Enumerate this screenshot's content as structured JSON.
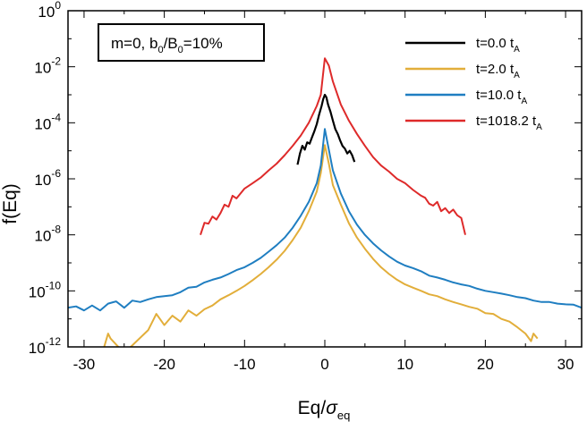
{
  "chart_data": {
    "type": "line",
    "annotation": "m=0, b0/B0=10%",
    "annotation_parts": {
      "m": "m=0, b",
      "sub1": "0",
      "mid": "/B",
      "sub2": "0",
      "rest": "=10%"
    },
    "xlabel": "Eq/σeq",
    "xlabel_parts": {
      "main": "Eq/",
      "sigma": "σ",
      "sub": "eq"
    },
    "ylabel": "f(Eq)",
    "xlim": [
      -32,
      32
    ],
    "ylim": [
      1e-12,
      1
    ],
    "yscale": "log",
    "xticks": [
      -30,
      -20,
      -10,
      0,
      10,
      20,
      30
    ],
    "xtick_labels": [
      "-30",
      "-20",
      "-10",
      "0",
      "10",
      "20",
      "30"
    ],
    "yticks": [
      1,
      0.01,
      0.0001,
      1e-06,
      1e-08,
      1e-10,
      1e-12
    ],
    "ytick_labels": [
      {
        "base": "10",
        "exp": "0"
      },
      {
        "base": "10",
        "exp": "-2"
      },
      {
        "base": "10",
        "exp": "-4"
      },
      {
        "base": "10",
        "exp": "-6"
      },
      {
        "base": "10",
        "exp": "-8"
      },
      {
        "base": "10",
        "exp": "-10"
      },
      {
        "base": "10",
        "exp": "-12"
      }
    ],
    "legend_position": "top-right",
    "series": [
      {
        "name": "t=0.0 tA",
        "label_main": "t=0.0 t",
        "label_sub": "A",
        "color": "#000000",
        "points": [
          [
            -3.4,
            3.2e-06
          ],
          [
            -3.1,
            8e-06
          ],
          [
            -2.8,
            1.5e-05
          ],
          [
            -2.5,
            1.1e-05
          ],
          [
            -2.2,
            2e-05
          ],
          [
            -1.9,
            1.8e-05
          ],
          [
            -1.6,
            3e-05
          ],
          [
            -1.3,
            5e-05
          ],
          [
            -1,
            9e-05
          ],
          [
            -0.7,
            0.0002
          ],
          [
            -0.4,
            0.0004
          ],
          [
            -0.2,
            0.0007
          ],
          [
            0,
            0.001
          ],
          [
            0.2,
            0.0008
          ],
          [
            0.4,
            0.00045
          ],
          [
            0.7,
            0.00025
          ],
          [
            1,
            0.00012
          ],
          [
            1.3,
            6e-05
          ],
          [
            1.6,
            4e-05
          ],
          [
            1.9,
            2.4e-05
          ],
          [
            2.2,
            1.5e-05
          ],
          [
            2.5,
            1.2e-05
          ],
          [
            2.8,
            8e-06
          ],
          [
            3.1,
            1e-05
          ],
          [
            3.4,
            7e-06
          ],
          [
            3.7,
            4e-06
          ]
        ]
      },
      {
        "name": "t=2.0 tA",
        "label_main": "t=2.0 t",
        "label_sub": "A",
        "color": "#e2ae3a",
        "points": [
          [
            -27.5,
            1e-12
          ],
          [
            -27,
            3e-12
          ],
          [
            -26.7,
            2e-12
          ],
          [
            -25,
            6e-13
          ],
          [
            -22,
            4e-12
          ],
          [
            -21,
            1.5e-11
          ],
          [
            -20,
            6e-12
          ],
          [
            -19,
            1.3e-11
          ],
          [
            -18,
            8e-12
          ],
          [
            -17,
            2e-11
          ],
          [
            -16,
            1.3e-11
          ],
          [
            -15,
            2.2e-11
          ],
          [
            -14,
            3e-11
          ],
          [
            -13,
            5e-11
          ],
          [
            -12,
            7e-11
          ],
          [
            -11,
            1e-10
          ],
          [
            -10,
            1.5e-10
          ],
          [
            -9,
            2.4e-10
          ],
          [
            -8,
            4e-10
          ],
          [
            -7,
            7e-10
          ],
          [
            -6,
            1.3e-09
          ],
          [
            -5,
            2.7e-09
          ],
          [
            -4,
            6.5e-09
          ],
          [
            -3,
            1.8e-08
          ],
          [
            -2,
            7e-08
          ],
          [
            -1,
            3.5e-07
          ],
          [
            -0.5,
            1.6e-06
          ],
          [
            0,
            1.6e-05
          ],
          [
            0.5,
            3.5e-06
          ],
          [
            1,
            6e-07
          ],
          [
            2,
            1.2e-07
          ],
          [
            3,
            2.6e-08
          ],
          [
            4,
            8e-09
          ],
          [
            5,
            3.2e-09
          ],
          [
            6,
            1.4e-09
          ],
          [
            7,
            7e-10
          ],
          [
            8,
            4e-10
          ],
          [
            9,
            2.5e-10
          ],
          [
            10,
            1.7e-10
          ],
          [
            11,
            1.3e-10
          ],
          [
            12,
            1e-10
          ],
          [
            13,
            7.5e-11
          ],
          [
            14,
            6.5e-11
          ],
          [
            15,
            5e-11
          ],
          [
            16,
            4e-11
          ],
          [
            17,
            3.3e-11
          ],
          [
            18,
            2.7e-11
          ],
          [
            19,
            2.3e-11
          ],
          [
            20,
            1.6e-11
          ],
          [
            21,
            1.5e-11
          ],
          [
            22,
            1e-11
          ],
          [
            23,
            8e-12
          ],
          [
            24,
            5e-12
          ],
          [
            25,
            3e-12
          ],
          [
            25.7,
            1.6e-12
          ],
          [
            26,
            3e-12
          ],
          [
            26.5,
            2e-12
          ]
        ]
      },
      {
        "name": "t=10.0 tA",
        "label_main": "t=10.0 t",
        "label_sub": "A",
        "color": "#1f7ec1",
        "points": [
          [
            -32,
            2.5e-11
          ],
          [
            -31,
            2.8e-11
          ],
          [
            -30,
            2e-11
          ],
          [
            -29,
            3e-11
          ],
          [
            -28,
            2e-11
          ],
          [
            -27,
            3.5e-11
          ],
          [
            -26,
            4.2e-11
          ],
          [
            -25,
            2.5e-11
          ],
          [
            -24,
            4.5e-11
          ],
          [
            -23,
            4e-11
          ],
          [
            -22,
            5e-11
          ],
          [
            -21,
            6e-11
          ],
          [
            -20,
            6.5e-11
          ],
          [
            -19,
            7e-11
          ],
          [
            -18,
            9e-11
          ],
          [
            -17,
            1.3e-10
          ],
          [
            -16,
            1.4e-10
          ],
          [
            -15,
            2e-10
          ],
          [
            -14,
            2.5e-10
          ],
          [
            -13,
            3e-10
          ],
          [
            -12,
            4e-10
          ],
          [
            -11,
            5.5e-10
          ],
          [
            -10,
            7e-10
          ],
          [
            -9,
            1e-09
          ],
          [
            -8,
            1.5e-09
          ],
          [
            -7,
            2.5e-09
          ],
          [
            -6,
            4.3e-09
          ],
          [
            -5,
            8e-09
          ],
          [
            -4,
            1.8e-08
          ],
          [
            -3,
            4.8e-08
          ],
          [
            -2,
            1.5e-07
          ],
          [
            -1,
            7e-07
          ],
          [
            -0.5,
            3e-06
          ],
          [
            0,
            6e-05
          ],
          [
            0.5,
            1.1e-05
          ],
          [
            1,
            2e-06
          ],
          [
            2,
            3e-07
          ],
          [
            3,
            7e-08
          ],
          [
            4,
            2.3e-08
          ],
          [
            5,
            1e-08
          ],
          [
            6,
            5e-09
          ],
          [
            7,
            2.8e-09
          ],
          [
            8,
            1.7e-09
          ],
          [
            9,
            1.1e-09
          ],
          [
            10,
            8e-10
          ],
          [
            11,
            6.5e-10
          ],
          [
            12,
            5e-10
          ],
          [
            13,
            3.5e-10
          ],
          [
            14,
            3e-10
          ],
          [
            15,
            2.5e-10
          ],
          [
            16,
            2e-10
          ],
          [
            17,
            1.7e-10
          ],
          [
            18,
            1.5e-10
          ],
          [
            19,
            1.2e-10
          ],
          [
            20,
            1e-10
          ],
          [
            21,
            9e-11
          ],
          [
            22,
            8e-11
          ],
          [
            23,
            7e-11
          ],
          [
            24,
            6e-11
          ],
          [
            25,
            5.5e-11
          ],
          [
            26,
            4.5e-11
          ],
          [
            27,
            4e-11
          ],
          [
            28,
            4e-11
          ],
          [
            29,
            3.5e-11
          ],
          [
            30,
            3.3e-11
          ],
          [
            31,
            3.2e-11
          ],
          [
            32,
            2.5e-11
          ]
        ]
      },
      {
        "name": "t=1018.2 tA",
        "label_main": "t=1018.2 t",
        "label_sub": "A",
        "color": "#de2a2a",
        "points": [
          [
            -15.5,
            1e-08
          ],
          [
            -15,
            2.7e-08
          ],
          [
            -14.5,
            2.5e-08
          ],
          [
            -14,
            4.5e-08
          ],
          [
            -13.5,
            3.5e-08
          ],
          [
            -13,
            6e-08
          ],
          [
            -12.5,
            1.2e-07
          ],
          [
            -12,
            1e-07
          ],
          [
            -11.5,
            2.5e-07
          ],
          [
            -11,
            2e-07
          ],
          [
            -10.5,
            3e-07
          ],
          [
            -10,
            4.5e-07
          ],
          [
            -9,
            7e-07
          ],
          [
            -8,
            1.1e-06
          ],
          [
            -7,
            2e-06
          ],
          [
            -6,
            3.5e-06
          ],
          [
            -5,
            7e-06
          ],
          [
            -4,
            1.5e-05
          ],
          [
            -3,
            3.5e-05
          ],
          [
            -2,
            0.0001
          ],
          [
            -1,
            0.0004
          ],
          [
            -0.5,
            0.001
          ],
          [
            0,
            0.02
          ],
          [
            0.5,
            0.011
          ],
          [
            1,
            0.003
          ],
          [
            2,
            0.00045
          ],
          [
            3,
            0.00012
          ],
          [
            4,
            4e-05
          ],
          [
            5,
            1.5e-05
          ],
          [
            6,
            6e-06
          ],
          [
            7,
            3e-06
          ],
          [
            8,
            1.8e-06
          ],
          [
            9,
            1e-06
          ],
          [
            10,
            7e-07
          ],
          [
            11,
            4e-07
          ],
          [
            12,
            2.5e-07
          ],
          [
            12.5,
            2.1e-07
          ],
          [
            13,
            1.3e-07
          ],
          [
            13.5,
            1.1e-07
          ],
          [
            14,
            1.5e-07
          ],
          [
            14.5,
            7e-08
          ],
          [
            15,
            9e-08
          ],
          [
            15.5,
            6e-08
          ],
          [
            16,
            8e-08
          ],
          [
            16.5,
            5e-08
          ],
          [
            17,
            4e-08
          ],
          [
            17.5,
            1e-08
          ]
        ]
      }
    ]
  }
}
